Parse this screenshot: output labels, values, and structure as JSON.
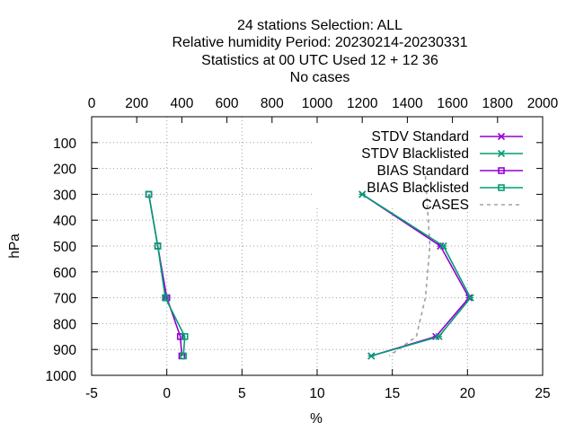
{
  "chart_data": {
    "type": "line",
    "title": [
      "24 stations Selection: ALL",
      "Relative humidity  Period: 20230214-20230331",
      "Statistics at 00 UTC  Used  12 + 12 36",
      "No cases"
    ],
    "xlabel": "%",
    "ylabel": "hPa",
    "xlim": [
      -5,
      25
    ],
    "ylim": [
      1000,
      0
    ],
    "x2lim": [
      0,
      2000
    ],
    "xticks": [
      "-5",
      "0",
      "5",
      "10",
      "15",
      "20",
      "25"
    ],
    "x2ticks": [
      "0",
      "200",
      "400",
      "600",
      "800",
      "1000",
      "1200",
      "1400",
      "1600",
      "1800",
      "2000"
    ],
    "yticks": [
      "100",
      "200",
      "300",
      "400",
      "500",
      "600",
      "700",
      "800",
      "900",
      "1000"
    ],
    "grid": true,
    "legend_position": "top-right",
    "series": [
      {
        "name": "STDV Standard",
        "color": "#9400d3",
        "marker": "x",
        "points": [
          [
            13.0,
            300
          ],
          [
            18.2,
            500
          ],
          [
            20.1,
            700
          ],
          [
            17.9,
            850
          ],
          [
            13.6,
            925
          ]
        ]
      },
      {
        "name": "STDV Blacklisted",
        "color": "#009e73",
        "marker": "x",
        "points": [
          [
            13.0,
            300
          ],
          [
            18.4,
            500
          ],
          [
            20.2,
            700
          ],
          [
            18.1,
            850
          ],
          [
            13.6,
            925
          ]
        ]
      },
      {
        "name": "BIAS Standard",
        "color": "#9400d3",
        "marker": "square",
        "points": [
          [
            -1.2,
            300
          ],
          [
            -0.6,
            500
          ],
          [
            0.0,
            700
          ],
          [
            0.9,
            850
          ],
          [
            1.0,
            925
          ]
        ]
      },
      {
        "name": "BIAS Blacklisted",
        "color": "#009e73",
        "marker": "square",
        "points": [
          [
            -1.2,
            300
          ],
          [
            -0.6,
            500
          ],
          [
            -0.1,
            700
          ],
          [
            1.2,
            850
          ],
          [
            1.1,
            925
          ]
        ]
      },
      {
        "name": "CASES",
        "color": "#a0a0a0",
        "marker": "none",
        "dashed": true,
        "axis": "x2",
        "points": [
          [
            1480,
            230
          ],
          [
            1500,
            500
          ],
          [
            1480,
            700
          ],
          [
            1440,
            850
          ],
          [
            1320,
            925
          ]
        ]
      }
    ]
  }
}
